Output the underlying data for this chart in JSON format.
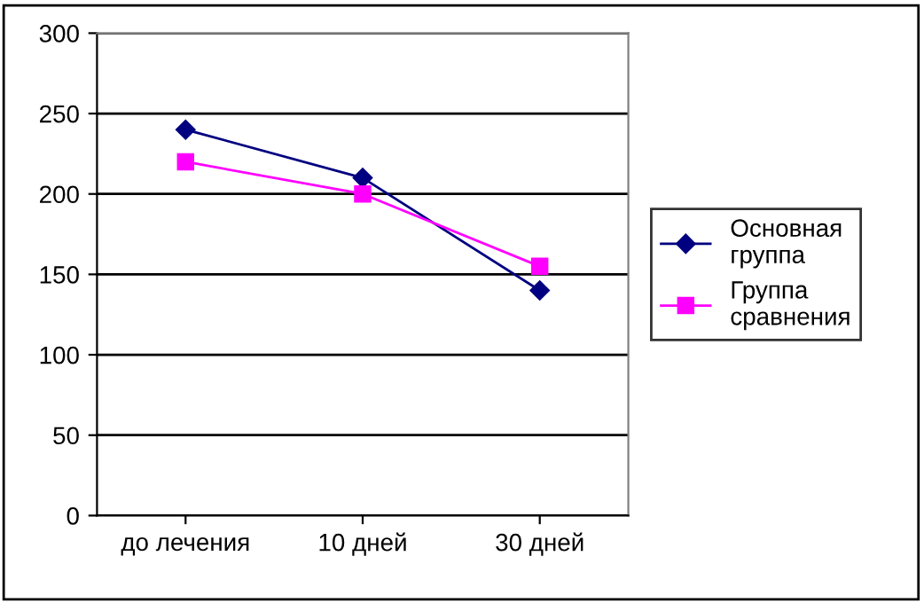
{
  "chart_data": {
    "type": "line",
    "categories": [
      "до лечения",
      "10 дней",
      "30 дней"
    ],
    "series": [
      {
        "name": "Основная\nгруппа",
        "color": "#000080",
        "marker": "diamond",
        "values": [
          240,
          210,
          140
        ]
      },
      {
        "name": "Группа\nсравнения",
        "color": "#ff00ff",
        "marker": "square",
        "values": [
          220,
          200,
          155
        ]
      }
    ],
    "ylim": [
      0,
      300
    ],
    "yticks": [
      0,
      50,
      100,
      150,
      200,
      250,
      300
    ],
    "grid": "y",
    "legend": "right",
    "line_style": "solid"
  }
}
